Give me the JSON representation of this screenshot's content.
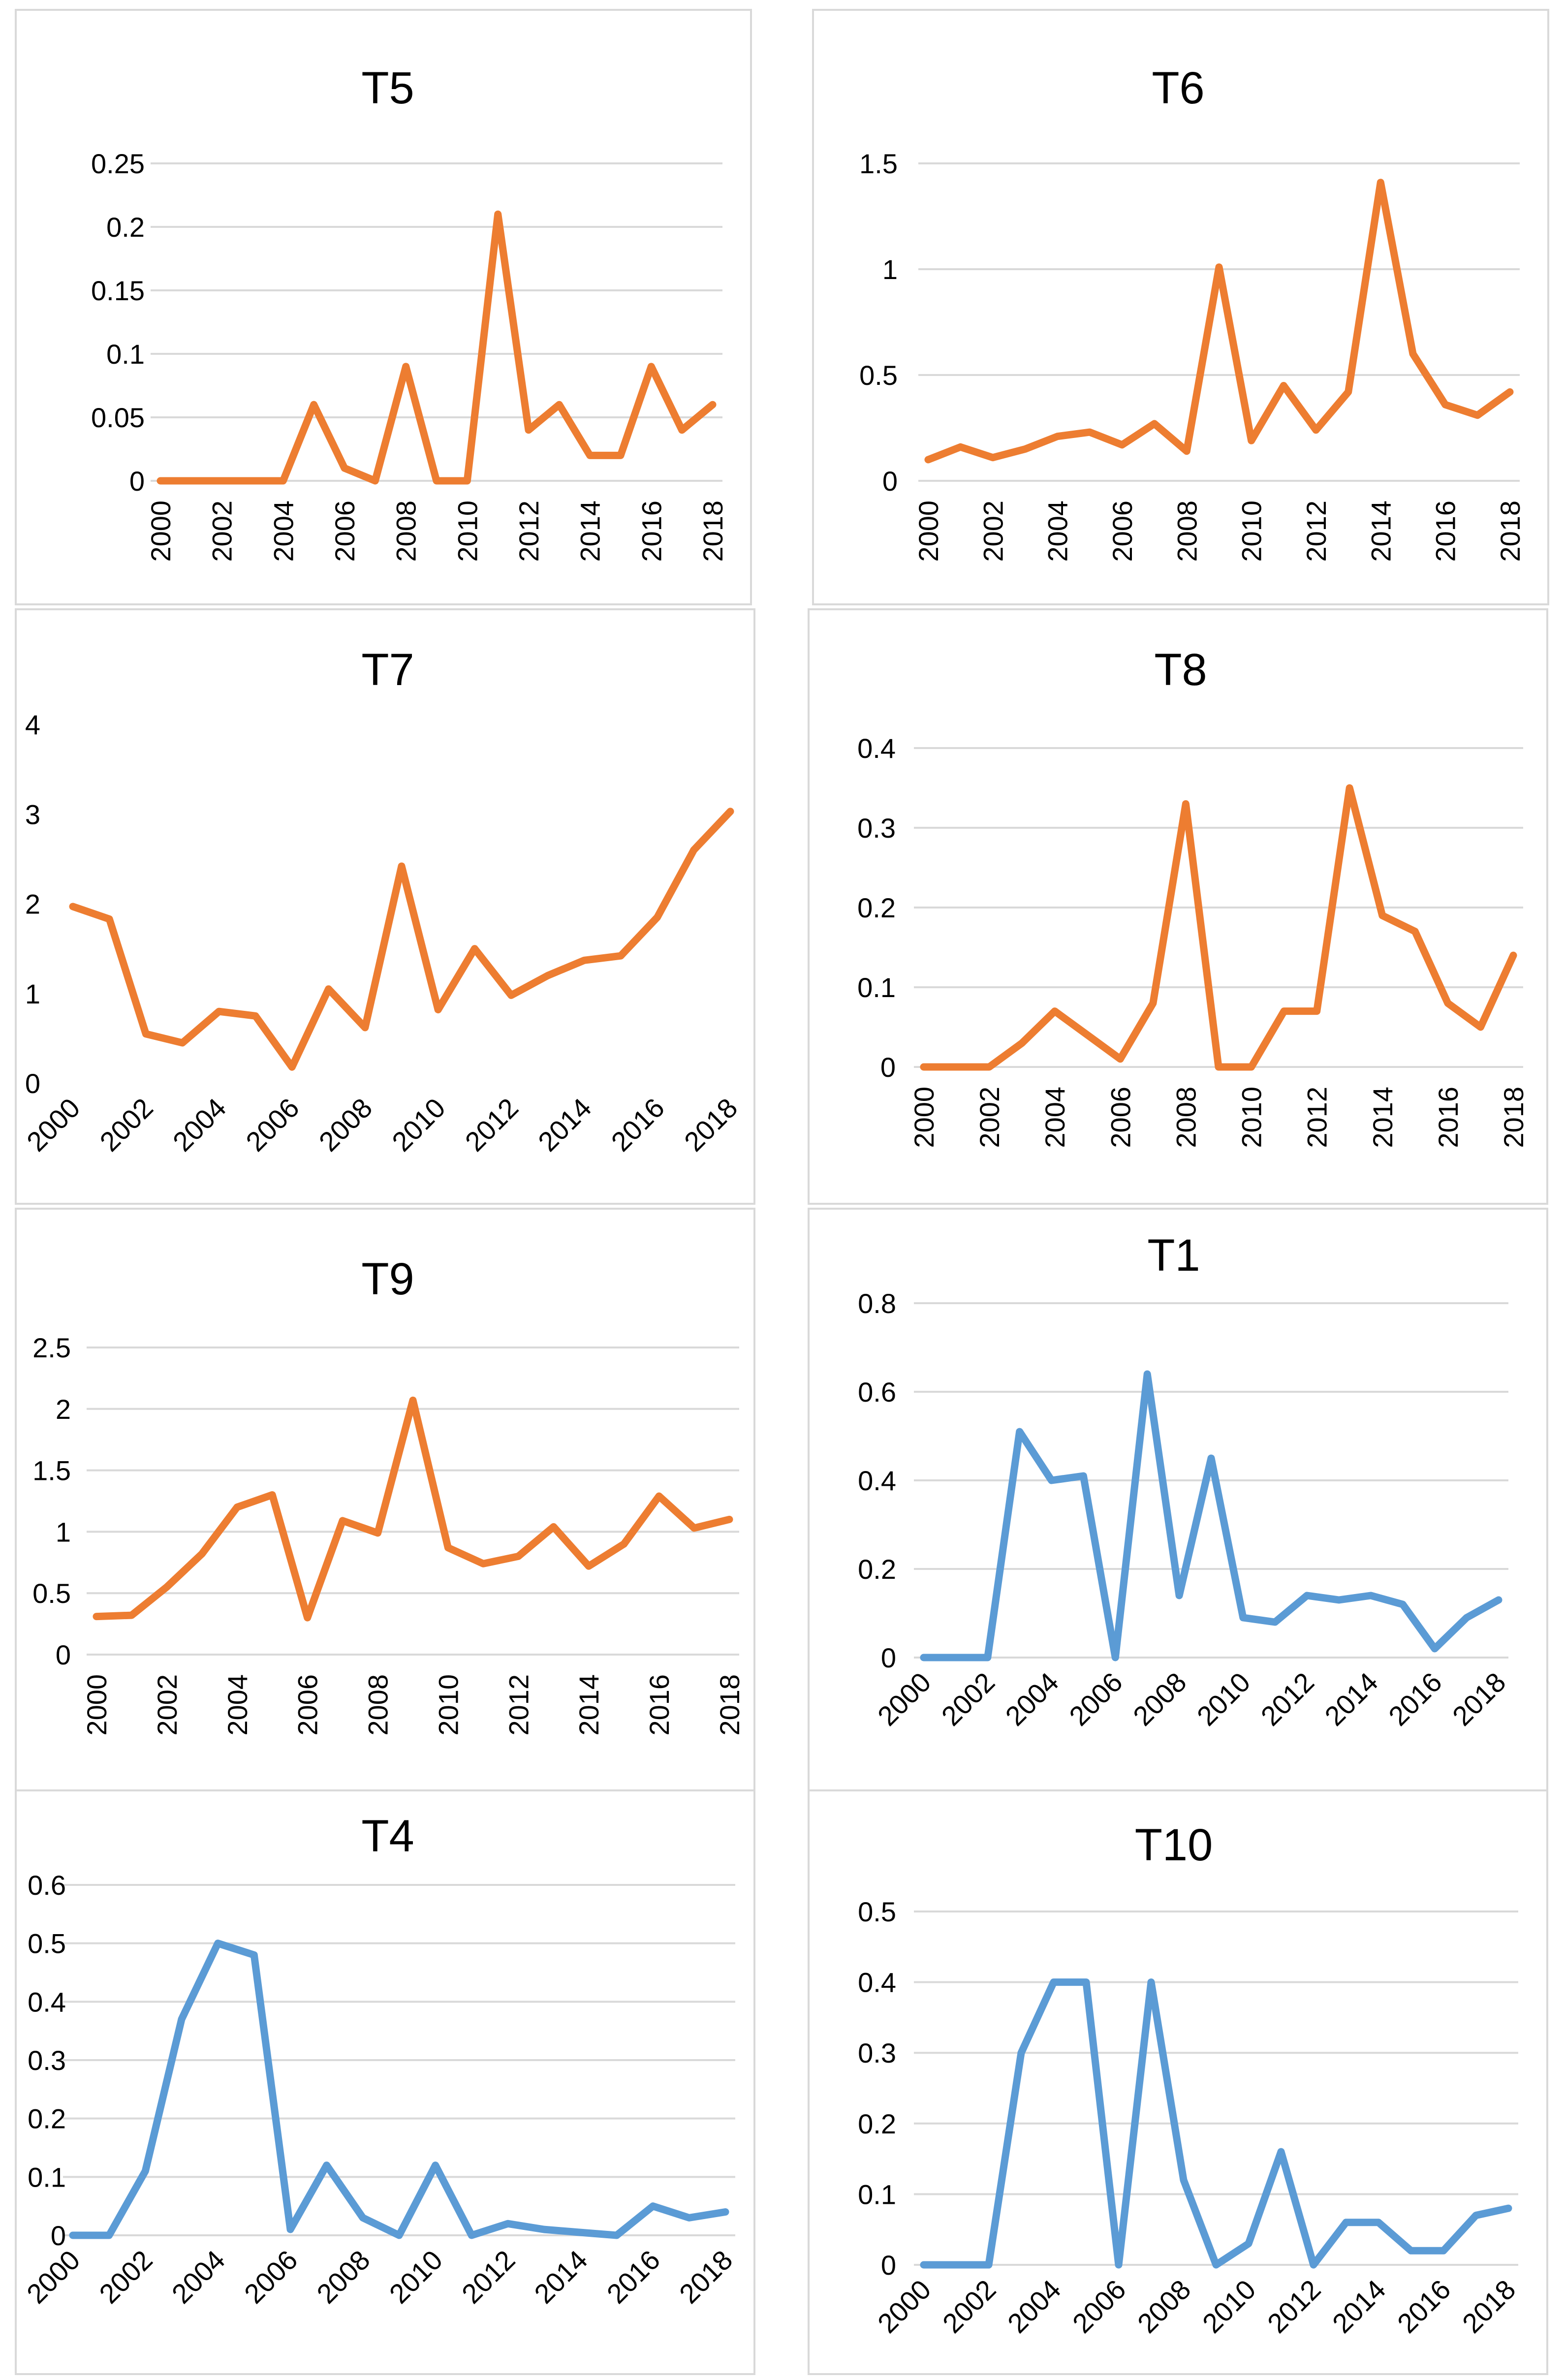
{
  "colors": {
    "orange": "#ED7D31",
    "blue": "#5B9BD5",
    "grid": "#D9D9D9",
    "border": "#D9D9D9"
  },
  "chart_data": [
    {
      "type": "line",
      "title": "T5",
      "color": "#ED7D31",
      "x": [
        2000,
        2001,
        2002,
        2003,
        2004,
        2005,
        2006,
        2007,
        2008,
        2009,
        2010,
        2011,
        2012,
        2013,
        2014,
        2015,
        2016,
        2017,
        2018
      ],
      "values": [
        0,
        0,
        0,
        0,
        0,
        0.06,
        0.01,
        0,
        0.09,
        0,
        0,
        0.21,
        0.04,
        0.06,
        0.02,
        0.02,
        0.09,
        0.04,
        0.06
      ],
      "yticks": [
        "0",
        "0.05",
        "0.1",
        "0.15",
        "0.2",
        "0.25"
      ],
      "ylim": [
        0,
        0.25
      ],
      "xticks": [
        "2000",
        "2002",
        "2004",
        "2006",
        "2008",
        "2010",
        "2012",
        "2014",
        "2016",
        "2018"
      ],
      "xlabel": "",
      "ylabel": "",
      "grid": true
    },
    {
      "type": "line",
      "title": "T6",
      "color": "#ED7D31",
      "x": [
        2000,
        2001,
        2002,
        2003,
        2004,
        2005,
        2006,
        2007,
        2008,
        2009,
        2010,
        2011,
        2012,
        2013,
        2014,
        2015,
        2016,
        2017,
        2018
      ],
      "values": [
        0.1,
        0.16,
        0.11,
        0.15,
        0.21,
        0.23,
        0.17,
        0.27,
        0.14,
        1.01,
        0.19,
        0.45,
        0.24,
        0.42,
        1.41,
        0.6,
        0.36,
        0.31,
        0.42
      ],
      "yticks": [
        "0",
        "0.5",
        "1",
        "1.5"
      ],
      "ylim": [
        0,
        1.5
      ],
      "xticks": [
        "2000",
        "2002",
        "2004",
        "2006",
        "2008",
        "2010",
        "2012",
        "2014",
        "2016",
        "2018"
      ],
      "xlabel": "",
      "ylabel": "",
      "grid": true
    },
    {
      "type": "line",
      "title": "T7",
      "color": "#ED7D31",
      "x": [
        2000,
        2001,
        2002,
        2003,
        2004,
        2005,
        2006,
        2007,
        2008,
        2009,
        2010,
        2011,
        2012,
        2013,
        2014,
        2015,
        2016,
        2017,
        2018
      ],
      "values": [
        1.97,
        1.83,
        0.55,
        0.45,
        0.8,
        0.75,
        0.18,
        1.05,
        0.62,
        2.42,
        0.82,
        1.5,
        0.98,
        1.2,
        1.37,
        1.42,
        1.85,
        2.6,
        3.03
      ],
      "yticks": [
        "0",
        "1",
        "2",
        "3",
        "4"
      ],
      "ylim": [
        0,
        4
      ],
      "xticks": [
        "2000",
        "2002",
        "2004",
        "2006",
        "2008",
        "2010",
        "2012",
        "2014",
        "2016",
        "2018"
      ],
      "xlabel": "",
      "ylabel": "",
      "grid": false
    },
    {
      "type": "line",
      "title": "T8",
      "color": "#ED7D31",
      "x": [
        2000,
        2001,
        2002,
        2003,
        2004,
        2005,
        2006,
        2007,
        2008,
        2009,
        2010,
        2011,
        2012,
        2013,
        2014,
        2015,
        2016,
        2017,
        2018
      ],
      "values": [
        0,
        0,
        0,
        0.03,
        0.07,
        0.04,
        0.01,
        0.08,
        0.33,
        0,
        0,
        0.07,
        0.07,
        0.35,
        0.19,
        0.17,
        0.08,
        0.05,
        0.14
      ],
      "yticks": [
        "0",
        "0.1",
        "0.2",
        "0.3",
        "0.4"
      ],
      "ylim": [
        0,
        0.4
      ],
      "xticks": [
        "2000",
        "2002",
        "2004",
        "2006",
        "2008",
        "2010",
        "2012",
        "2014",
        "2016",
        "2018"
      ],
      "xlabel": "",
      "ylabel": "",
      "grid": true
    },
    {
      "type": "line",
      "title": "T9",
      "color": "#ED7D31",
      "x": [
        2000,
        2001,
        2002,
        2003,
        2004,
        2005,
        2006,
        2007,
        2008,
        2009,
        2010,
        2011,
        2012,
        2013,
        2014,
        2015,
        2016,
        2017,
        2018
      ],
      "values": [
        0.31,
        0.32,
        0.55,
        0.82,
        1.2,
        1.3,
        0.3,
        1.09,
        0.99,
        2.07,
        0.87,
        0.74,
        0.8,
        1.04,
        0.72,
        0.9,
        1.29,
        1.03,
        1.1
      ],
      "yticks": [
        "0",
        "0.5",
        "1",
        "1.5",
        "2",
        "2.5"
      ],
      "ylim": [
        0,
        2.5
      ],
      "xticks": [
        "2000",
        "2002",
        "2004",
        "2006",
        "2008",
        "2010",
        "2012",
        "2014",
        "2016",
        "2018"
      ],
      "xlabel": "",
      "ylabel": "",
      "grid": true
    },
    {
      "type": "line",
      "title": "T1",
      "color": "#5B9BD5",
      "x": [
        2000,
        2001,
        2002,
        2003,
        2004,
        2005,
        2006,
        2007,
        2008,
        2009,
        2010,
        2011,
        2012,
        2013,
        2014,
        2015,
        2016,
        2017,
        2018
      ],
      "values": [
        0,
        0,
        0,
        0.51,
        0.4,
        0.41,
        0,
        0.64,
        0.14,
        0.45,
        0.09,
        0.08,
        0.14,
        0.13,
        0.14,
        0.12,
        0.02,
        0.09,
        0.13
      ],
      "yticks": [
        "0",
        "0.2",
        "0.4",
        "0.6",
        "0.8"
      ],
      "ylim": [
        0,
        0.8
      ],
      "xticks": [
        "2000",
        "2002",
        "2004",
        "2006",
        "2008",
        "2010",
        "2012",
        "2014",
        "2016",
        "2018"
      ],
      "xlabel": "",
      "ylabel": "",
      "grid": true
    },
    {
      "type": "line",
      "title": "T4",
      "color": "#5B9BD5",
      "x": [
        2000,
        2001,
        2002,
        2003,
        2004,
        2005,
        2006,
        2007,
        2008,
        2009,
        2010,
        2011,
        2012,
        2013,
        2014,
        2015,
        2016,
        2017,
        2018
      ],
      "values": [
        0,
        0,
        0.11,
        0.37,
        0.5,
        0.48,
        0.01,
        0.12,
        0.03,
        0,
        0.12,
        0,
        0.02,
        0.01,
        0.005,
        0,
        0.05,
        0.03,
        0.04
      ],
      "yticks": [
        "0",
        "0.1",
        "0.2",
        "0.3",
        "0.4",
        "0.5",
        "0.6"
      ],
      "ylim": [
        0,
        0.6
      ],
      "xticks": [
        "2000",
        "2002",
        "2004",
        "2006",
        "2008",
        "2010",
        "2012",
        "2014",
        "2016",
        "2018"
      ],
      "xlabel": "",
      "ylabel": "",
      "grid": true
    },
    {
      "type": "line",
      "title": "T10",
      "color": "#5B9BD5",
      "x": [
        2000,
        2001,
        2002,
        2003,
        2004,
        2005,
        2006,
        2007,
        2008,
        2009,
        2010,
        2011,
        2012,
        2013,
        2014,
        2015,
        2016,
        2017,
        2018
      ],
      "values": [
        0,
        0,
        0,
        0.3,
        0.4,
        0.4,
        0,
        0.4,
        0.12,
        0,
        0.03,
        0.16,
        0,
        0.06,
        0.06,
        0.02,
        0.02,
        0.07,
        0.08
      ],
      "yticks": [
        "0",
        "0.1",
        "0.2",
        "0.3",
        "0.4",
        "0.5"
      ],
      "ylim": [
        0,
        0.5
      ],
      "xticks": [
        "2000",
        "2002",
        "2004",
        "2006",
        "2008",
        "2010",
        "2012",
        "2014",
        "2016",
        "2018"
      ],
      "xlabel": "",
      "ylabel": "",
      "grid": true
    }
  ]
}
